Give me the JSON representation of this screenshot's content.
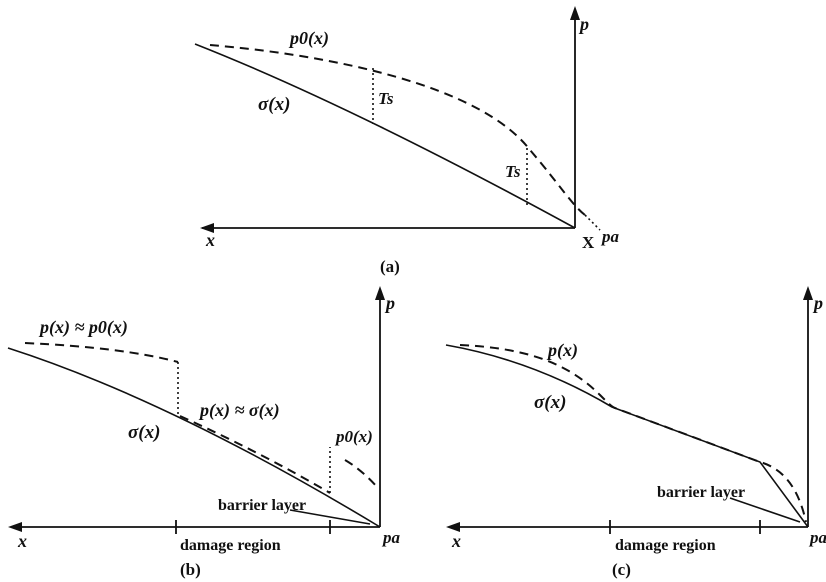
{
  "panel_a": {
    "caption": "(a)",
    "labels": {
      "p0x": "p0(x)",
      "p_axis": "p",
      "sigma": "σ(x)",
      "ts1": "Ts",
      "ts2": "Ts",
      "x_axis": "x",
      "X_point": "X",
      "pa": "pa"
    }
  },
  "panel_b": {
    "caption": "(b)",
    "labels": {
      "p_approx_p0": "p(x) ≈ p0(x)",
      "p_approx_sigma": "p(x) ≈ σ(x)",
      "sigma": "σ(x)",
      "p0x": "p0(x)",
      "barrier": "barrier layer",
      "damage": "damage region",
      "x_axis": "x",
      "p_axis": "p",
      "pa": "pa"
    }
  },
  "panel_c": {
    "caption": "(c)",
    "labels": {
      "px": "p(x)",
      "sigma": "σ(x)",
      "barrier": "barrier layer",
      "damage": "damage region",
      "x_axis": "x",
      "p_axis": "p",
      "pa": "pa"
    }
  }
}
